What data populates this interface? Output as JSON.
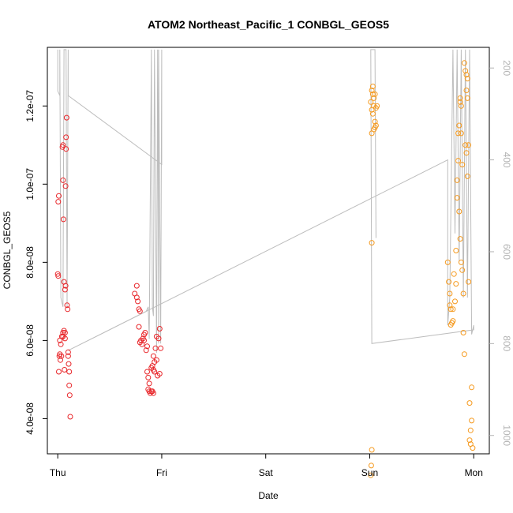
{
  "chart_data": {
    "type": "scatter",
    "title": "ATOM2 Northeast_Pacific_1 CONBGL_GEOS5",
    "xlabel": "Date",
    "ylabel": "CONBGL_GEOS5",
    "x_ticks": [
      "Thu",
      "Fri",
      "Sat",
      "Sun",
      "Mon"
    ],
    "x_domain": [
      -0.1,
      4.15
    ],
    "y_ticks": [
      "4.0e-08",
      "6.0e-08",
      "8.0e-08",
      "1.0e-07",
      "1.2e-07"
    ],
    "y_tick_values": [
      4e-08,
      6e-08,
      8e-08,
      1e-07,
      1.2e-07
    ],
    "ylim": [
      3.1e-08,
      1.35e-07
    ],
    "y2_ticks": [
      "200",
      "400",
      "600",
      "800",
      "1000"
    ],
    "y2_tick_values": [
      200,
      400,
      600,
      800,
      1000
    ],
    "y2lim": [
      1040,
      155
    ],
    "colors": {
      "red": "#e8262a",
      "orange": "#f59a1f",
      "line": "#bdbdbd"
    },
    "series": [
      {
        "color": "#e8262a",
        "points": [
          [
            0.0,
            7.7e-08
          ],
          [
            0.005,
            7.65e-08
          ],
          [
            0.01,
            9.7e-08
          ],
          [
            0.005,
            9.55e-08
          ],
          [
            0.01,
            5.2e-08
          ],
          [
            0.015,
            5.6e-08
          ],
          [
            0.02,
            5.65e-08
          ],
          [
            0.02,
            6e-08
          ],
          [
            0.03,
            5.9e-08
          ],
          [
            0.025,
            5.5e-08
          ],
          [
            0.035,
            5.6e-08
          ],
          [
            0.04,
            6.1e-08
          ],
          [
            0.05,
            6.2e-08
          ],
          [
            0.05,
            6.1e-08
          ],
          [
            0.045,
            1.095e-07
          ],
          [
            0.05,
            1.1e-07
          ],
          [
            0.05,
            1.01e-07
          ],
          [
            0.055,
            9.1e-08
          ],
          [
            0.06,
            7.5e-08
          ],
          [
            0.06,
            6.25e-08
          ],
          [
            0.07,
            6.2e-08
          ],
          [
            0.07,
            6.05e-08
          ],
          [
            0.065,
            5.25e-08
          ],
          [
            0.07,
            7.3e-08
          ],
          [
            0.075,
            7.4e-08
          ],
          [
            0.08,
            1.12e-07
          ],
          [
            0.085,
            1.17e-07
          ],
          [
            0.08,
            1.09e-07
          ],
          [
            0.075,
            9.95e-08
          ],
          [
            0.09,
            6.9e-08
          ],
          [
            0.095,
            6.8e-08
          ],
          [
            0.1,
            5.7e-08
          ],
          [
            0.1,
            5.6e-08
          ],
          [
            0.105,
            5.4e-08
          ],
          [
            0.11,
            5.2e-08
          ],
          [
            0.11,
            4.85e-08
          ],
          [
            0.115,
            4.6e-08
          ],
          [
            0.12,
            4.05e-08
          ],
          [
            0.74,
            7.2e-08
          ],
          [
            0.76,
            7.4e-08
          ],
          [
            0.76,
            7.1e-08
          ],
          [
            0.77,
            7e-08
          ],
          [
            0.78,
            6.8e-08
          ],
          [
            0.79,
            6.75e-08
          ],
          [
            0.78,
            6.35e-08
          ],
          [
            0.79,
            5.95e-08
          ],
          [
            0.8,
            6e-08
          ],
          [
            0.81,
            5.9e-08
          ],
          [
            0.82,
            6.05e-08
          ],
          [
            0.83,
            6e-08
          ],
          [
            0.83,
            6.15e-08
          ],
          [
            0.84,
            6.2e-08
          ],
          [
            0.85,
            5.75e-08
          ],
          [
            0.86,
            5.85e-08
          ],
          [
            0.86,
            5.2e-08
          ],
          [
            0.87,
            5.05e-08
          ],
          [
            0.88,
            4.9e-08
          ],
          [
            0.87,
            4.75e-08
          ],
          [
            0.88,
            4.7e-08
          ],
          [
            0.89,
            4.65e-08
          ],
          [
            0.9,
            4.7e-08
          ],
          [
            0.91,
            4.7e-08
          ],
          [
            0.92,
            4.65e-08
          ],
          [
            0.9,
            5.3e-08
          ],
          [
            0.91,
            5.35e-08
          ],
          [
            0.92,
            5.25e-08
          ],
          [
            0.93,
            5.2e-08
          ],
          [
            0.93,
            5.45e-08
          ],
          [
            0.92,
            5.6e-08
          ],
          [
            0.94,
            5.8e-08
          ],
          [
            0.95,
            5.5e-08
          ],
          [
            0.96,
            5.1e-08
          ],
          [
            0.95,
            6.1e-08
          ],
          [
            0.97,
            6.05e-08
          ],
          [
            0.98,
            6.3e-08
          ],
          [
            0.99,
            5.8e-08
          ],
          [
            0.98,
            5.15e-08
          ]
        ]
      },
      {
        "color": "#f59a1f",
        "points": [
          [
            3.01,
            1.21e-07
          ],
          [
            3.02,
            1.24e-07
          ],
          [
            3.03,
            1.25e-07
          ],
          [
            3.03,
            1.23e-07
          ],
          [
            3.04,
            1.22e-07
          ],
          [
            3.04,
            1.2e-07
          ],
          [
            3.05,
            1.23e-07
          ],
          [
            3.02,
            1.19e-07
          ],
          [
            3.03,
            1.18e-07
          ],
          [
            3.05,
            1.16e-07
          ],
          [
            3.06,
            1.15e-07
          ],
          [
            3.06,
            1.195e-07
          ],
          [
            3.07,
            1.2e-07
          ],
          [
            3.02,
            1.13e-07
          ],
          [
            3.04,
            1.14e-07
          ],
          [
            3.05,
            1.145e-07
          ],
          [
            3.02,
            8.5e-08
          ],
          [
            3.02,
            3.2e-08
          ],
          [
            3.015,
            2.8e-08
          ],
          [
            3.01,
            2.55e-08
          ],
          [
            3.75,
            8e-08
          ],
          [
            3.76,
            7.5e-08
          ],
          [
            3.77,
            7.2e-08
          ],
          [
            3.77,
            6.9e-08
          ],
          [
            3.78,
            6.8e-08
          ],
          [
            3.78,
            6.4e-08
          ],
          [
            3.79,
            6.45e-08
          ],
          [
            3.8,
            6.5e-08
          ],
          [
            3.8,
            6.8e-08
          ],
          [
            3.81,
            7.7e-08
          ],
          [
            3.82,
            7e-08
          ],
          [
            3.83,
            7.45e-08
          ],
          [
            3.83,
            8.3e-08
          ],
          [
            3.84,
            9.65e-08
          ],
          [
            3.84,
            1.01e-07
          ],
          [
            3.85,
            1.06e-07
          ],
          [
            3.85,
            1.13e-07
          ],
          [
            3.86,
            1.15e-07
          ],
          [
            3.87,
            1.21e-07
          ],
          [
            3.87,
            1.22e-07
          ],
          [
            3.88,
            1.2e-07
          ],
          [
            3.88,
            1.13e-07
          ],
          [
            3.89,
            1.05e-07
          ],
          [
            3.86,
            9.3e-08
          ],
          [
            3.87,
            8.6e-08
          ],
          [
            3.88,
            8e-08
          ],
          [
            3.89,
            7.8e-08
          ],
          [
            3.9,
            7.2e-08
          ],
          [
            3.9,
            6.2e-08
          ],
          [
            3.91,
            5.65e-08
          ],
          [
            3.91,
            1.31e-07
          ],
          [
            3.92,
            1.29e-07
          ],
          [
            3.93,
            1.28e-07
          ],
          [
            3.94,
            1.27e-07
          ],
          [
            3.93,
            1.24e-07
          ],
          [
            3.94,
            1.22e-07
          ],
          [
            3.92,
            1.1e-07
          ],
          [
            3.93,
            1.08e-07
          ],
          [
            3.94,
            1.02e-07
          ],
          [
            3.95,
            1.1e-07
          ],
          [
            3.95,
            7.5e-08
          ],
          [
            3.96,
            4.4e-08
          ],
          [
            3.97,
            3.7e-08
          ],
          [
            3.98,
            3.95e-08
          ],
          [
            3.96,
            3.45e-08
          ],
          [
            3.97,
            3.35e-08
          ],
          [
            3.99,
            3.25e-08
          ],
          [
            3.98,
            4.8e-08
          ]
        ]
      }
    ],
    "pressure_line": [
      [
        0.0,
        160
      ],
      [
        0.0,
        250
      ],
      [
        0.02,
        260
      ],
      [
        0.02,
        160
      ],
      [
        0.03,
        700
      ],
      [
        0.05,
        720
      ],
      [
        0.06,
        160
      ],
      [
        0.08,
        160
      ],
      [
        0.09,
        720
      ],
      [
        0.1,
        160
      ],
      [
        0.1,
        260
      ],
      [
        1.0,
        410
      ],
      [
        1.0,
        160
      ],
      [
        0.99,
        800
      ],
      [
        0.97,
        160
      ],
      [
        0.97,
        800
      ],
      [
        0.96,
        160
      ],
      [
        0.95,
        820
      ],
      [
        0.93,
        160
      ],
      [
        0.92,
        740
      ],
      [
        0.91,
        720
      ],
      [
        0.9,
        160
      ],
      [
        0.88,
        790
      ],
      [
        0.87,
        720
      ],
      [
        0.85,
        730
      ],
      [
        0.1,
        815
      ],
      [
        3.75,
        400
      ],
      [
        3.75,
        760
      ],
      [
        3.77,
        700
      ],
      [
        3.8,
        160
      ],
      [
        3.82,
        560
      ],
      [
        3.84,
        160
      ],
      [
        3.86,
        620
      ],
      [
        3.88,
        160
      ],
      [
        3.9,
        700
      ],
      [
        3.92,
        160
      ],
      [
        3.94,
        700
      ],
      [
        3.96,
        160
      ],
      [
        3.98,
        780
      ],
      [
        4.0,
        760
      ],
      [
        4.0,
        770
      ],
      [
        3.02,
        800
      ],
      [
        3.01,
        160
      ],
      [
        3.05,
        160
      ],
      [
        3.06,
        570
      ]
    ]
  }
}
